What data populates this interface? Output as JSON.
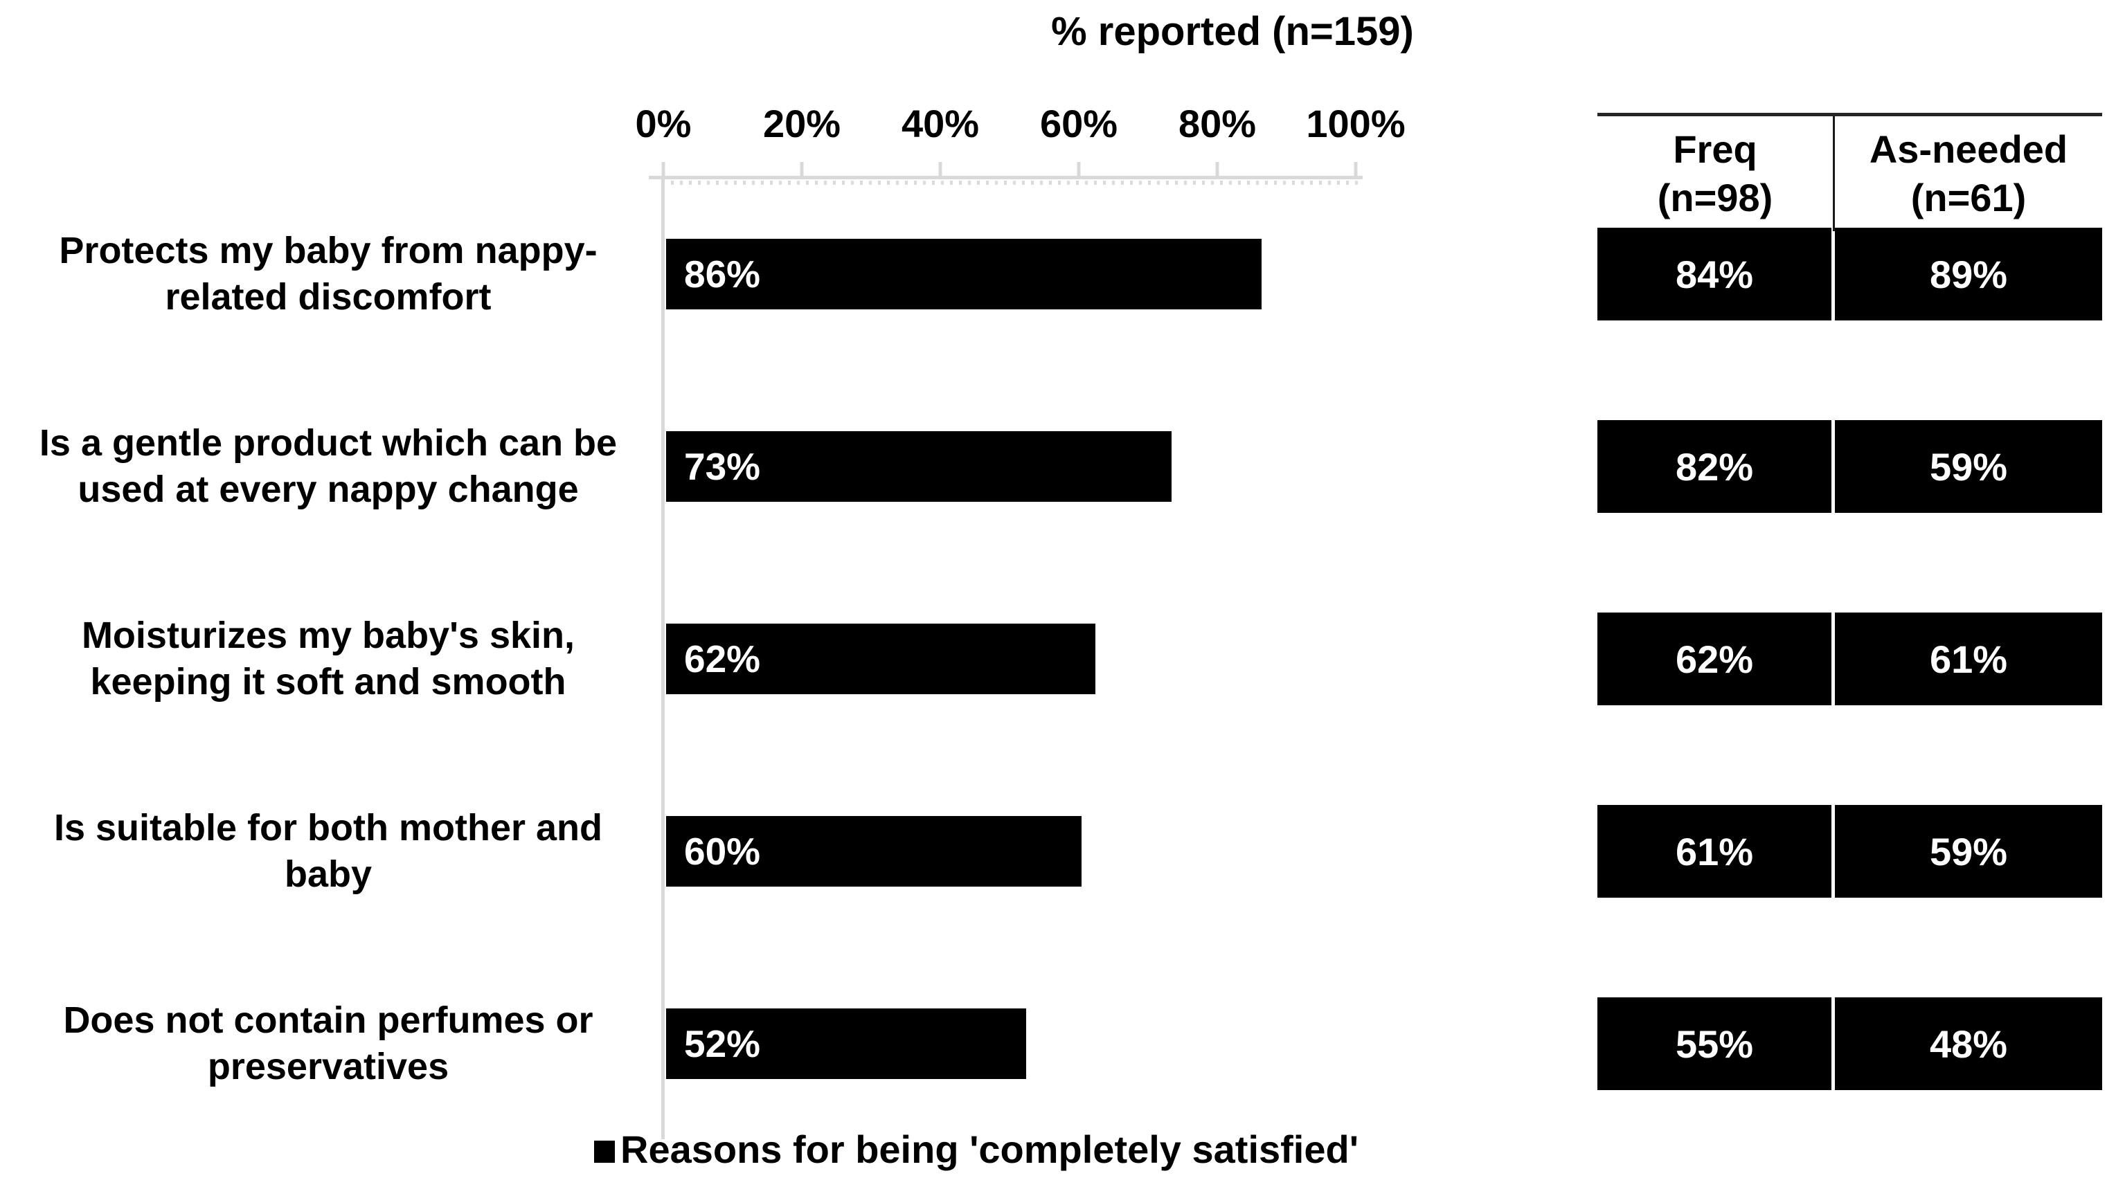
{
  "colors": {
    "bar": "#000000",
    "bar_label": "#ffffff",
    "axis": "#d9d9d9",
    "text": "#000000",
    "table_cell_bg": "#000000",
    "table_cell_text": "#ffffff"
  },
  "chart_data": {
    "type": "bar",
    "orientation": "horizontal",
    "title": "% reported (n=159)",
    "categories": [
      "Protects my baby from nappy-related discomfort",
      "Is a gentle product which can be used at every nappy change",
      "Moisturizes my baby's skin, keeping it soft and smooth",
      "Is suitable for both mother and baby",
      "Does not contain perfumes or preservatives"
    ],
    "values": [
      86,
      73,
      62,
      60,
      52
    ],
    "value_labels": [
      "86%",
      "73%",
      "62%",
      "60%",
      "52%"
    ],
    "x_ticks": [
      "0%",
      "20%",
      "40%",
      "60%",
      "80%",
      "100%"
    ],
    "xlim": [
      0,
      100
    ],
    "grid": false,
    "legend": "Reasons for being 'completely satisfied'",
    "legend_position": "bottom",
    "series": [
      {
        "name": "Reasons for being 'completely satisfied'",
        "values": [
          86,
          73,
          62,
          60,
          52
        ]
      },
      {
        "name": "Freq (n=98)",
        "values": [
          84,
          82,
          62,
          61,
          55
        ]
      },
      {
        "name": "As-needed (n=61)",
        "values": [
          89,
          59,
          61,
          59,
          48
        ]
      }
    ],
    "table": {
      "headers": [
        "Freq\n(n=98)",
        "As-needed\n(n=61)"
      ],
      "rows": [
        [
          "84%",
          "89%"
        ],
        [
          "82%",
          "59%"
        ],
        [
          "62%",
          "61%"
        ],
        [
          "61%",
          "59%"
        ],
        [
          "55%",
          "48%"
        ]
      ]
    }
  }
}
